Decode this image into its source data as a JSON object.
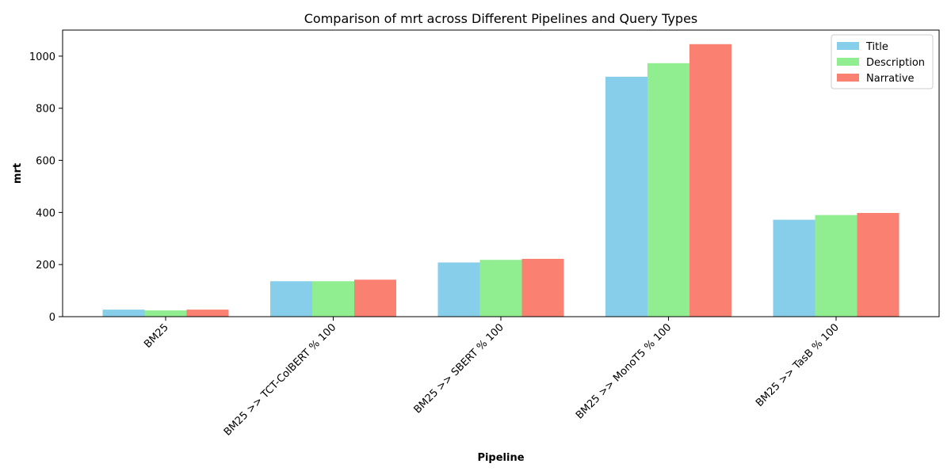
{
  "chart_data": {
    "type": "bar",
    "title": "Comparison of mrt across Different Pipelines and Query Types",
    "xlabel": "Pipeline",
    "ylabel": "mrt",
    "categories": [
      "BM25",
      "BM25 >> TCT-ColBERT % 100",
      "BM25 >> SBERT % 100",
      "BM25 >> MonoT5 % 100",
      "BM25 >> TasB % 100"
    ],
    "series": [
      {
        "name": "Title",
        "color": "#87ceeb",
        "values": [
          27,
          136,
          208,
          921,
          372
        ]
      },
      {
        "name": "Description",
        "color": "#90ee90",
        "values": [
          24,
          136,
          218,
          973,
          390
        ]
      },
      {
        "name": "Narrative",
        "color": "#fa8072",
        "values": [
          27,
          142,
          222,
          1046,
          398
        ]
      }
    ],
    "ylim": [
      0,
      1100
    ],
    "yticks": [
      0,
      200,
      400,
      600,
      800,
      1000
    ],
    "grid": false,
    "legend_position": "top-right"
  }
}
